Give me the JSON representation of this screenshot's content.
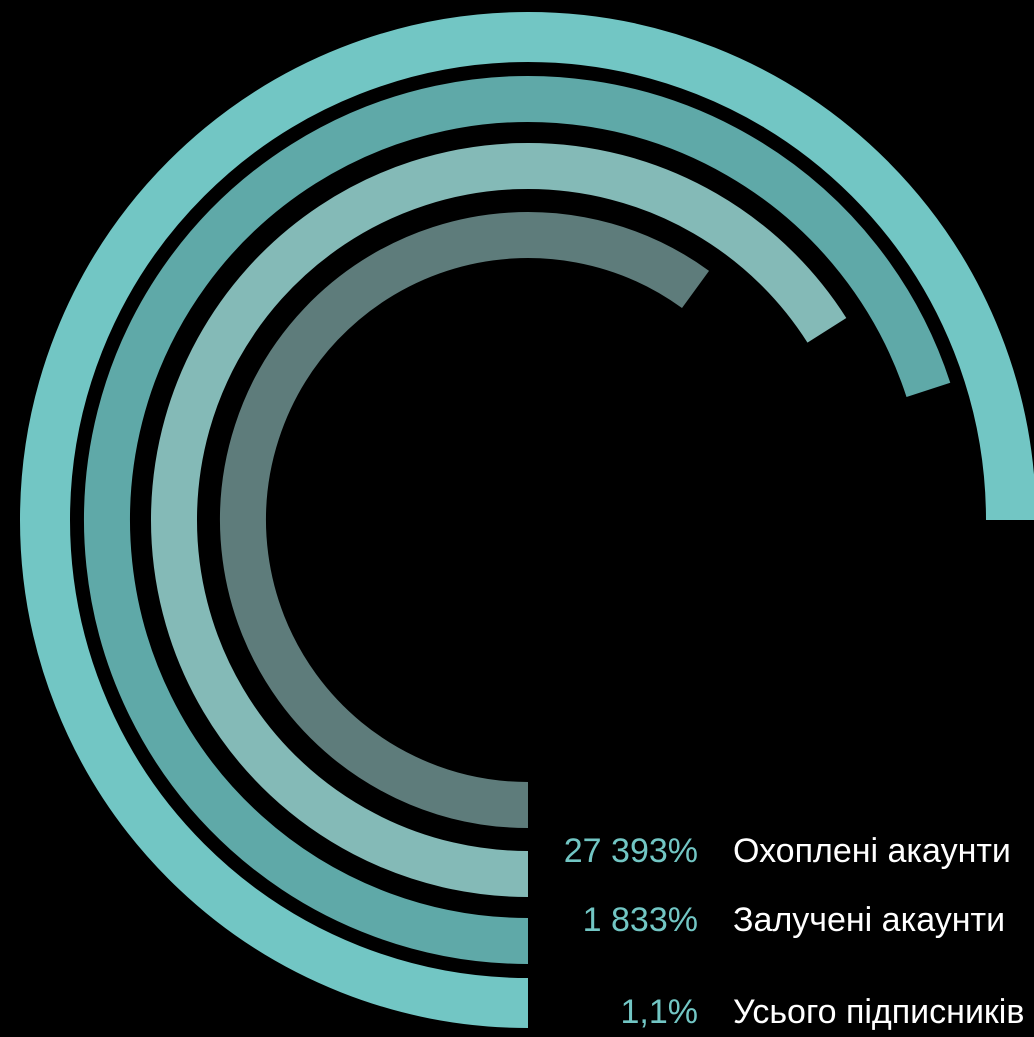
{
  "chart_data": {
    "type": "radial-bar",
    "series": [
      {
        "name": "Охоплені акаунти",
        "label": "27 393%",
        "fraction": 0.6,
        "color": "#5E7C7B"
      },
      {
        "name": "Залучені акаунти",
        "label": "1 833%",
        "fraction": 0.66,
        "color": "#84BAB7"
      },
      {
        "name": "Усього підписників",
        "label": "1,1%",
        "fraction": 0.7,
        "color": "#5FA9A8"
      },
      {
        "name": "",
        "label": "",
        "fraction": 0.75,
        "color": "#72C6C4"
      }
    ],
    "colors": {
      "background": "#000000",
      "value_text": "#72C6C4",
      "name_text": "#FFFFFF"
    }
  }
}
